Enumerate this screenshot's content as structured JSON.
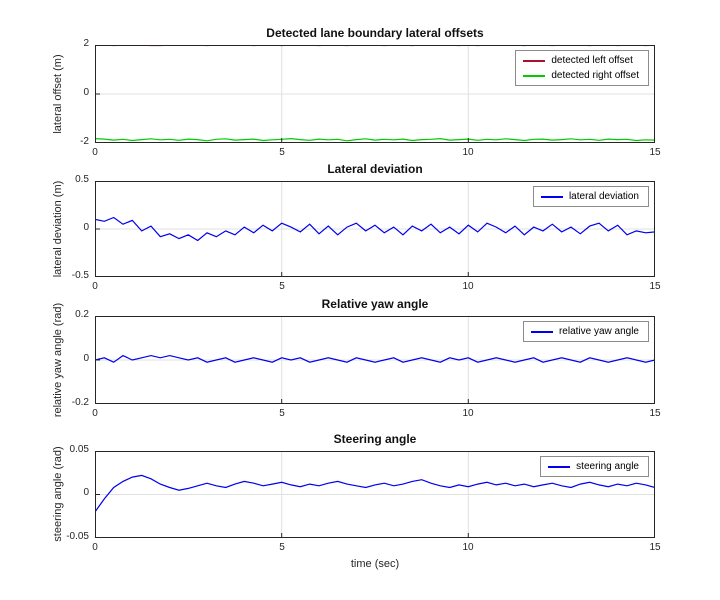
{
  "figure": {
    "background": "#ffffff",
    "axes_color": "#262626",
    "grid_color": "#e0e0e0"
  },
  "chart_data": [
    {
      "type": "line",
      "title": "Detected lane boundary lateral offsets",
      "ylabel": "lateral offset (m)",
      "xlabel": "",
      "xlim": [
        0,
        15
      ],
      "ylim": [
        -2,
        2
      ],
      "xticks": [
        0,
        5,
        10,
        15
      ],
      "yticks": [
        -2,
        0,
        2
      ],
      "xtick_labels": [
        "0",
        "5",
        "10",
        "15"
      ],
      "ytick_labels": [
        "-2",
        "0",
        "2"
      ],
      "grid": true,
      "legend_position": "northeast",
      "x_start": 0,
      "x_step": 0.25,
      "series": [
        {
          "name": "detected left offset",
          "color": "#a2142f",
          "values": [
            2.0,
            1.99,
            1.98,
            1.99,
            2.0,
            1.99,
            1.98,
            1.98,
            1.99,
            2.0,
            1.99,
            1.99,
            1.98,
            1.99,
            1.99,
            2.0,
            1.99,
            1.98,
            1.99,
            1.99,
            1.98,
            1.99,
            2.0,
            1.99,
            1.98,
            1.99,
            1.99,
            1.98,
            1.99,
            2.0,
            1.99,
            1.98,
            1.99,
            1.99,
            1.98,
            1.99,
            1.99,
            2.0,
            1.99,
            1.98,
            1.99,
            1.98,
            1.99,
            2.0,
            1.99,
            1.99,
            1.98,
            1.99,
            1.99,
            1.98,
            1.99,
            2.0,
            1.99,
            1.98,
            1.99,
            1.99,
            1.98,
            1.99,
            1.99,
            1.98,
            1.99
          ]
        },
        {
          "name": "detected right offset",
          "color": "#00cc00",
          "values": [
            -1.82,
            -1.84,
            -1.88,
            -1.85,
            -1.9,
            -1.86,
            -1.83,
            -1.87,
            -1.85,
            -1.89,
            -1.84,
            -1.86,
            -1.91,
            -1.85,
            -1.83,
            -1.88,
            -1.86,
            -1.84,
            -1.9,
            -1.87,
            -1.85,
            -1.82,
            -1.86,
            -1.89,
            -1.84,
            -1.87,
            -1.85,
            -1.91,
            -1.86,
            -1.83,
            -1.88,
            -1.85,
            -1.87,
            -1.84,
            -1.9,
            -1.86,
            -1.85,
            -1.82,
            -1.88,
            -1.86,
            -1.84,
            -1.89,
            -1.85,
            -1.87,
            -1.83,
            -1.86,
            -1.9,
            -1.85,
            -1.84,
            -1.88,
            -1.86,
            -1.83,
            -1.87,
            -1.85,
            -1.89,
            -1.84,
            -1.86,
            -1.85,
            -1.9,
            -1.87,
            -1.88
          ]
        }
      ]
    },
    {
      "type": "line",
      "title": "Lateral deviation",
      "ylabel": "lateral deviation (m)",
      "xlabel": "",
      "xlim": [
        0,
        15
      ],
      "ylim": [
        -0.5,
        0.5
      ],
      "xticks": [
        0,
        5,
        10,
        15
      ],
      "yticks": [
        -0.5,
        0,
        0.5
      ],
      "xtick_labels": [
        "0",
        "5",
        "10",
        "15"
      ],
      "ytick_labels": [
        "-0.5",
        "0",
        "0.5"
      ],
      "grid": true,
      "legend_position": "northeast",
      "x_start": 0,
      "x_step": 0.25,
      "series": [
        {
          "name": "lateral deviation",
          "color": "#0000ee",
          "values": [
            0.1,
            0.08,
            0.12,
            0.05,
            0.09,
            -0.02,
            0.03,
            -0.08,
            -0.05,
            -0.1,
            -0.06,
            -0.12,
            -0.04,
            -0.08,
            -0.02,
            -0.06,
            0.02,
            -0.04,
            0.04,
            -0.02,
            0.06,
            0.02,
            -0.03,
            0.05,
            -0.05,
            0.03,
            -0.06,
            0.02,
            0.06,
            -0.02,
            0.04,
            -0.04,
            0.02,
            -0.06,
            0.03,
            -0.02,
            0.05,
            -0.04,
            0.02,
            -0.05,
            0.04,
            -0.03,
            0.06,
            0.02,
            -0.04,
            0.03,
            -0.06,
            0.02,
            -0.02,
            0.05,
            -0.03,
            0.02,
            -0.05,
            0.03,
            0.06,
            -0.02,
            0.04,
            -0.06,
            -0.02,
            -0.04,
            -0.03
          ]
        }
      ]
    },
    {
      "type": "line",
      "title": "Relative yaw angle",
      "ylabel": "relative yaw angle (rad)",
      "xlabel": "",
      "xlim": [
        0,
        15
      ],
      "ylim": [
        -0.2,
        0.2
      ],
      "xticks": [
        0,
        5,
        10,
        15
      ],
      "yticks": [
        -0.2,
        0,
        0.2
      ],
      "xtick_labels": [
        "0",
        "5",
        "10",
        "15"
      ],
      "ytick_labels": [
        "-0.2",
        "0",
        "0.2"
      ],
      "grid": true,
      "legend_position": "northeast",
      "x_start": 0,
      "x_step": 0.25,
      "series": [
        {
          "name": "relative yaw angle",
          "color": "#0000ee",
          "values": [
            0.0,
            0.01,
            -0.01,
            0.02,
            0.0,
            0.01,
            0.02,
            0.01,
            0.02,
            0.01,
            0.0,
            0.01,
            -0.01,
            0.0,
            0.01,
            -0.01,
            0.0,
            0.01,
            0.0,
            -0.01,
            0.01,
            0.0,
            0.01,
            -0.01,
            0.0,
            0.01,
            0.0,
            -0.01,
            0.01,
            0.0,
            -0.01,
            0.0,
            0.01,
            -0.01,
            0.0,
            0.01,
            0.0,
            -0.01,
            0.01,
            0.0,
            0.01,
            -0.01,
            0.0,
            0.01,
            0.0,
            -0.01,
            0.0,
            0.01,
            -0.01,
            0.0,
            0.01,
            0.0,
            -0.01,
            0.01,
            0.0,
            -0.01,
            0.0,
            0.01,
            0.0,
            -0.01,
            0.0
          ]
        }
      ]
    },
    {
      "type": "line",
      "title": "Steering angle",
      "ylabel": "steering angle (rad)",
      "xlabel": "time (sec)",
      "xlim": [
        0,
        15
      ],
      "ylim": [
        -0.05,
        0.05
      ],
      "xticks": [
        0,
        5,
        10,
        15
      ],
      "yticks": [
        -0.05,
        0,
        0.05
      ],
      "xtick_labels": [
        "0",
        "5",
        "10",
        "15"
      ],
      "ytick_labels": [
        "-0.05",
        "0",
        "0.05"
      ],
      "grid": true,
      "legend_position": "northeast",
      "x_start": 0,
      "x_step": 0.25,
      "series": [
        {
          "name": "steering angle",
          "color": "#0000ee",
          "values": [
            -0.02,
            -0.005,
            0.008,
            0.015,
            0.02,
            0.022,
            0.018,
            0.012,
            0.008,
            0.005,
            0.007,
            0.01,
            0.013,
            0.01,
            0.008,
            0.012,
            0.015,
            0.013,
            0.01,
            0.012,
            0.014,
            0.011,
            0.009,
            0.012,
            0.01,
            0.013,
            0.015,
            0.012,
            0.01,
            0.008,
            0.011,
            0.013,
            0.01,
            0.012,
            0.015,
            0.017,
            0.013,
            0.01,
            0.008,
            0.011,
            0.009,
            0.012,
            0.014,
            0.011,
            0.013,
            0.01,
            0.012,
            0.009,
            0.011,
            0.013,
            0.01,
            0.008,
            0.012,
            0.014,
            0.011,
            0.009,
            0.012,
            0.01,
            0.013,
            0.011,
            0.008
          ]
        }
      ]
    }
  ]
}
